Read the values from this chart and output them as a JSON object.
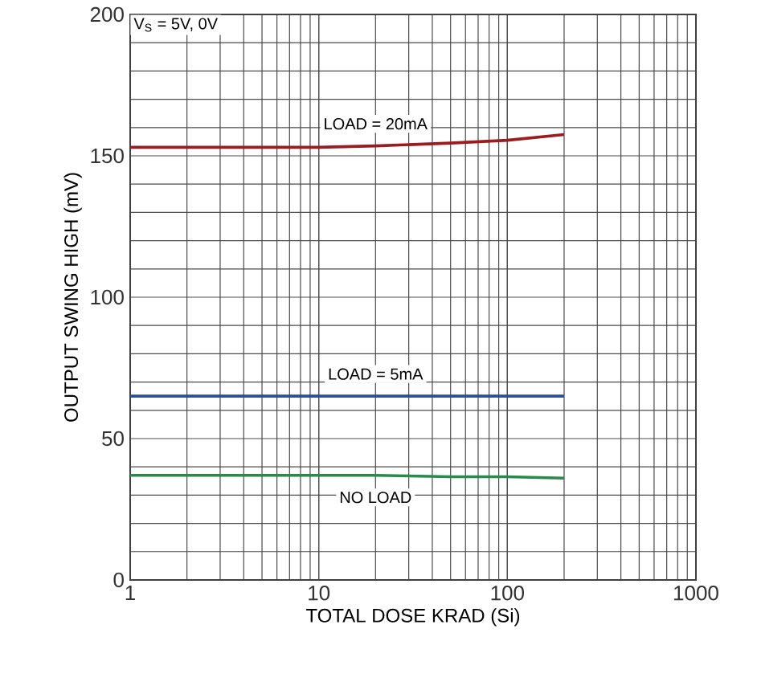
{
  "chart_data": {
    "type": "line",
    "xlabel": "TOTAL DOSE KRAD (Si)",
    "ylabel": "OUTPUT SWING HIGH (mV)",
    "annotations": [
      "V$_{S}$ = 5V, 0V"
    ],
    "x": [
      1,
      2,
      5,
      10,
      20,
      50,
      100,
      200
    ],
    "series": [
      {
        "name": "LOAD = 20mA",
        "color": "#9b1b1f",
        "values": [
          153,
          153,
          153,
          153,
          153.5,
          154.5,
          155.5,
          157.5
        ]
      },
      {
        "name": "LOAD = 5mA",
        "color": "#2a4da0",
        "values": [
          65,
          65,
          65,
          65,
          65,
          65,
          65,
          65
        ]
      },
      {
        "name": "NO LOAD",
        "color": "#2a8a4a",
        "values": [
          37,
          37,
          37,
          37,
          37,
          36.5,
          36.5,
          36
        ]
      }
    ],
    "log": "x",
    "xlim": [
      1,
      1000
    ],
    "xticks": [
      1,
      10,
      100,
      1000
    ],
    "ylim": [
      0,
      200
    ],
    "yticks": [
      0,
      50,
      100,
      150,
      200
    ],
    "grid": true
  }
}
